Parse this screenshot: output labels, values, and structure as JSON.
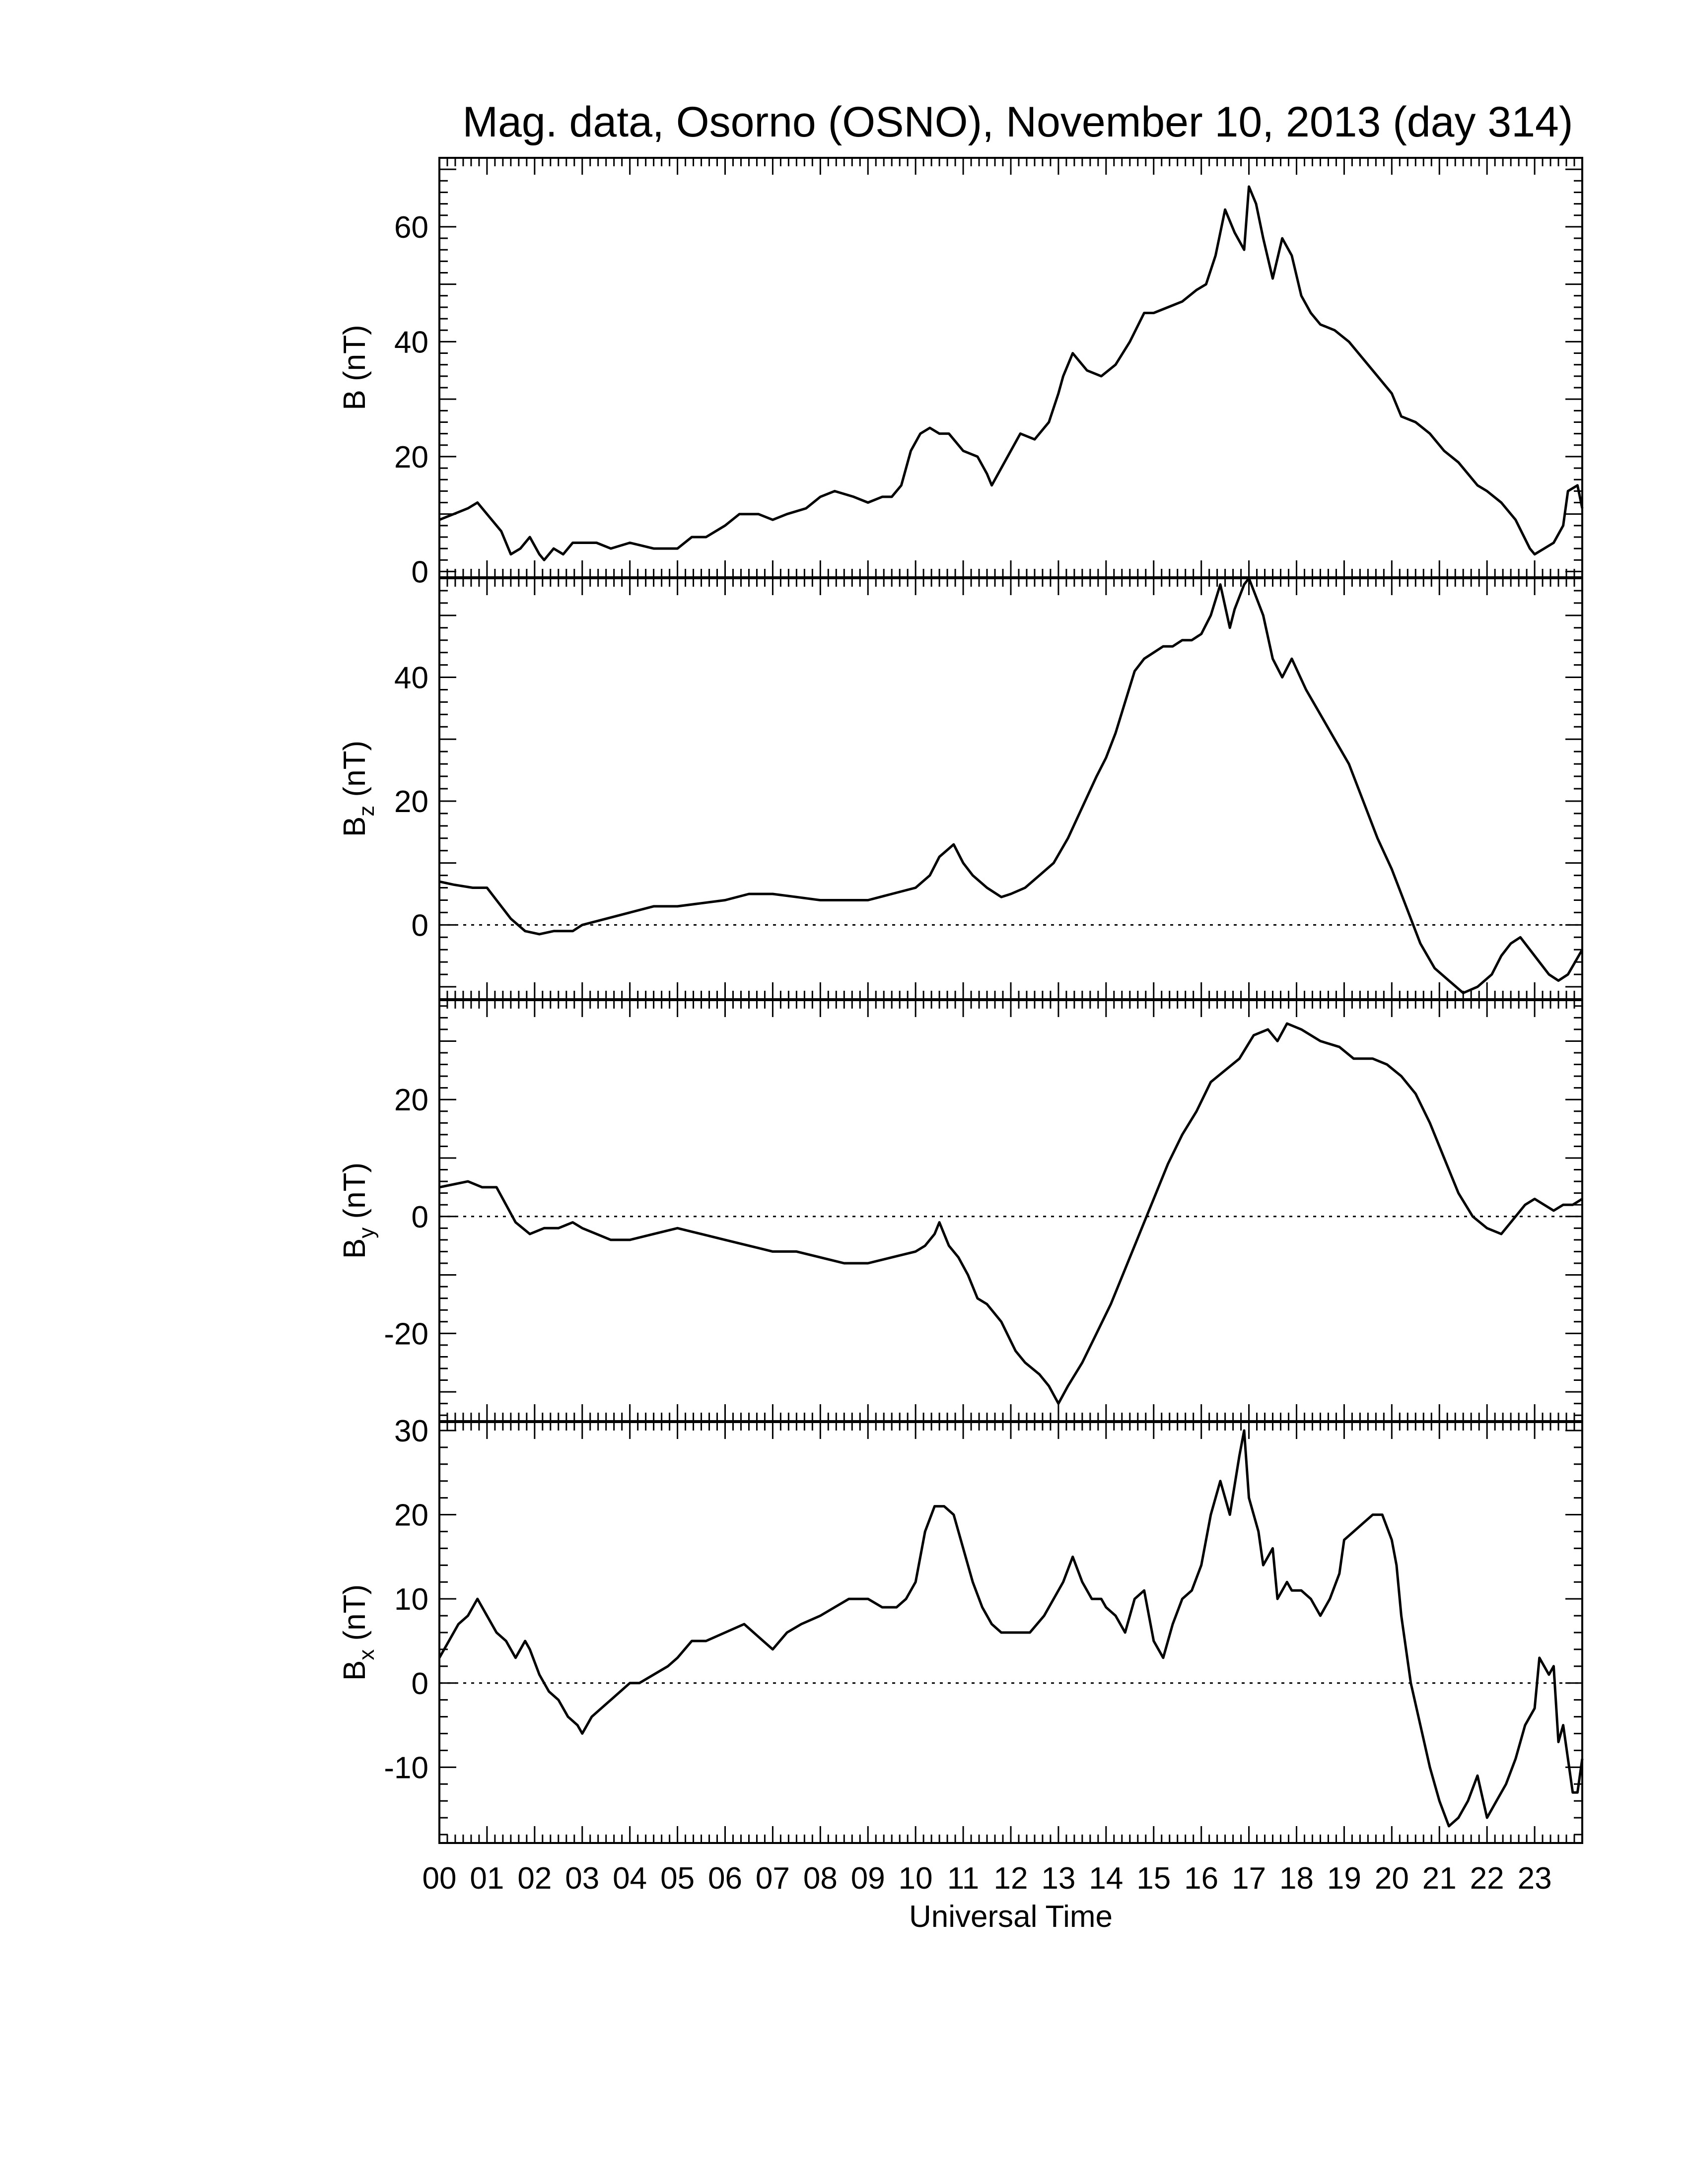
{
  "title": "Mag. data, Osorno (OSNO), November 10, 2013 (day 314)",
  "chart_data": [
    {
      "type": "line",
      "ylabel": "B (nT)",
      "ylabel_main": "B",
      "ylabel_sub": "",
      "ylabel_unit": " (nT)",
      "ylim": [
        -1,
        72
      ],
      "yticks": [
        0,
        20,
        40,
        60
      ],
      "zero_line": false,
      "x": [
        0.0,
        0.3,
        0.6,
        0.8,
        1.0,
        1.3,
        1.5,
        1.7,
        1.9,
        2.1,
        2.2,
        2.4,
        2.6,
        2.8,
        3.0,
        3.3,
        3.6,
        4.0,
        4.5,
        5.0,
        5.3,
        5.6,
        6.0,
        6.3,
        6.7,
        7.0,
        7.3,
        7.7,
        8.0,
        8.3,
        8.7,
        9.0,
        9.3,
        9.5,
        9.7,
        9.9,
        10.1,
        10.3,
        10.5,
        10.7,
        11.0,
        11.3,
        11.5,
        11.6,
        11.8,
        12.0,
        12.2,
        12.5,
        12.8,
        13.0,
        13.1,
        13.3,
        13.6,
        13.9,
        14.2,
        14.5,
        14.8,
        15.0,
        15.3,
        15.6,
        15.9,
        16.1,
        16.3,
        16.5,
        16.7,
        16.9,
        17.0,
        17.15,
        17.3,
        17.5,
        17.7,
        17.9,
        18.1,
        18.3,
        18.5,
        18.8,
        19.1,
        19.4,
        19.7,
        20.0,
        20.2,
        20.5,
        20.8,
        21.1,
        21.4,
        21.6,
        21.8,
        22.0,
        22.3,
        22.6,
        22.9,
        23.0,
        23.2,
        23.4,
        23.6,
        23.7,
        23.9,
        24.0
      ],
      "y": [
        9,
        10,
        11,
        12,
        10,
        7,
        3,
        4,
        6,
        3,
        2,
        4,
        3,
        5,
        5,
        5,
        4,
        5,
        4,
        4,
        6,
        6,
        8,
        10,
        10,
        9,
        10,
        11,
        13,
        14,
        13,
        12,
        13,
        13,
        15,
        21,
        24,
        25,
        24,
        24,
        21,
        20,
        17,
        15,
        18,
        21,
        24,
        23,
        26,
        31,
        34,
        38,
        35,
        34,
        36,
        40,
        45,
        45,
        46,
        47,
        49,
        50,
        55,
        63,
        59,
        56,
        67,
        64,
        58,
        51,
        58,
        55,
        48,
        45,
        43,
        42,
        40,
        37,
        34,
        31,
        27,
        26,
        24,
        21,
        19,
        17,
        15,
        14,
        12,
        9,
        4,
        3,
        4,
        5,
        8,
        14,
        15,
        11
      ]
    },
    {
      "type": "line",
      "ylabel": "Bz (nT)",
      "ylabel_main": "B",
      "ylabel_sub": "z",
      "ylabel_unit": " (nT)",
      "ylim": [
        -12,
        56
      ],
      "yticks": [
        0,
        20,
        40
      ],
      "zero_line": true,
      "x": [
        0.0,
        0.3,
        0.7,
        1.0,
        1.2,
        1.5,
        1.8,
        2.1,
        2.4,
        2.8,
        3.0,
        3.5,
        4.0,
        4.5,
        5.0,
        5.5,
        6.0,
        6.5,
        7.0,
        7.5,
        8.0,
        8.5,
        9.0,
        9.5,
        10.0,
        10.3,
        10.5,
        10.8,
        11.0,
        11.2,
        11.5,
        11.8,
        12.0,
        12.3,
        12.6,
        12.9,
        13.2,
        13.5,
        13.8,
        14.0,
        14.2,
        14.4,
        14.6,
        14.8,
        15.0,
        15.2,
        15.4,
        15.6,
        15.8,
        16.0,
        16.2,
        16.4,
        16.6,
        16.7,
        16.9,
        17.0,
        17.1,
        17.3,
        17.5,
        17.7,
        17.9,
        18.2,
        18.5,
        18.8,
        19.1,
        19.4,
        19.7,
        20.0,
        20.3,
        20.6,
        20.9,
        21.2,
        21.5,
        21.8,
        22.1,
        22.3,
        22.5,
        22.7,
        22.9,
        23.1,
        23.3,
        23.5,
        23.7,
        23.85,
        24.0
      ],
      "y": [
        7,
        6.5,
        6,
        6,
        4,
        1,
        -1,
        -1.5,
        -1,
        -1,
        0,
        1,
        2,
        3,
        3,
        3.5,
        4,
        5,
        5,
        4.5,
        4,
        4,
        4,
        5,
        6,
        8,
        11,
        13,
        10,
        8,
        6,
        4.5,
        5,
        6,
        8,
        10,
        14,
        19,
        24,
        27,
        31,
        36,
        41,
        43,
        44,
        45,
        45,
        46,
        46,
        47,
        50,
        55,
        48,
        51,
        55,
        56,
        54,
        50,
        43,
        40,
        43,
        38,
        34,
        30,
        26,
        20,
        14,
        9,
        3,
        -3,
        -7,
        -9,
        -11,
        -10,
        -8,
        -5,
        -3,
        -2,
        -4,
        -6,
        -8,
        -9,
        -8,
        -6,
        -4
      ]
    },
    {
      "type": "line",
      "ylabel": "By (nT)",
      "ylabel_main": "B",
      "ylabel_sub": "y",
      "ylabel_unit": " (nT)",
      "ylim": [
        -35,
        37
      ],
      "yticks": [
        -20,
        0,
        20
      ],
      "zero_line": true,
      "x": [
        0.0,
        0.3,
        0.6,
        0.9,
        1.2,
        1.4,
        1.6,
        1.9,
        2.2,
        2.5,
        2.8,
        3.0,
        3.3,
        3.6,
        4.0,
        4.5,
        5.0,
        5.5,
        6.0,
        6.5,
        7.0,
        7.5,
        8.0,
        8.5,
        9.0,
        9.5,
        10.0,
        10.2,
        10.4,
        10.5,
        10.7,
        10.9,
        11.1,
        11.3,
        11.5,
        11.8,
        12.1,
        12.3,
        12.6,
        12.8,
        13.0,
        13.2,
        13.5,
        13.8,
        14.1,
        14.4,
        14.7,
        15.0,
        15.3,
        15.6,
        15.9,
        16.2,
        16.5,
        16.8,
        17.1,
        17.4,
        17.6,
        17.8,
        18.1,
        18.5,
        18.9,
        19.2,
        19.6,
        19.9,
        20.2,
        20.5,
        20.8,
        21.1,
        21.4,
        21.7,
        22.0,
        22.3,
        22.5,
        22.8,
        23.0,
        23.2,
        23.4,
        23.6,
        23.8,
        24.0
      ],
      "y": [
        5,
        5.5,
        6,
        5,
        5,
        2,
        -1,
        -3,
        -2,
        -2,
        -1,
        -2,
        -3,
        -4,
        -4,
        -3,
        -2,
        -3,
        -4,
        -5,
        -6,
        -6,
        -7,
        -8,
        -8,
        -7,
        -6,
        -5,
        -3,
        -1,
        -5,
        -7,
        -10,
        -14,
        -15,
        -18,
        -23,
        -25,
        -27,
        -29,
        -32,
        -29,
        -25,
        -20,
        -15,
        -9,
        -3,
        3,
        9,
        14,
        18,
        23,
        25,
        27,
        31,
        32,
        30,
        33,
        32,
        30,
        29,
        27,
        27,
        26,
        24,
        21,
        16,
        10,
        4,
        0,
        -2,
        -3,
        -1,
        2,
        3,
        2,
        1,
        2,
        2,
        3
      ]
    },
    {
      "type": "line",
      "ylabel": "Bx (nT)",
      "ylabel_main": "B",
      "ylabel_sub": "x",
      "ylabel_unit": " (nT)",
      "ylim": [
        -19,
        31
      ],
      "yticks": [
        -10,
        0,
        10,
        20,
        30
      ],
      "zero_line": true,
      "x": [
        0.0,
        0.2,
        0.4,
        0.6,
        0.8,
        1.0,
        1.2,
        1.4,
        1.6,
        1.8,
        1.9,
        2.1,
        2.3,
        2.5,
        2.7,
        2.9,
        3.0,
        3.2,
        3.4,
        3.6,
        3.8,
        4.0,
        4.2,
        4.5,
        4.8,
        5.0,
        5.3,
        5.6,
        6.0,
        6.4,
        6.8,
        7.0,
        7.3,
        7.6,
        8.0,
        8.3,
        8.6,
        9.0,
        9.3,
        9.6,
        9.8,
        10.0,
        10.2,
        10.4,
        10.6,
        10.8,
        11.0,
        11.2,
        11.4,
        11.6,
        11.8,
        12.0,
        12.2,
        12.4,
        12.7,
        12.9,
        13.1,
        13.3,
        13.5,
        13.7,
        13.9,
        14.0,
        14.2,
        14.4,
        14.6,
        14.8,
        15.0,
        15.2,
        15.4,
        15.6,
        15.8,
        16.0,
        16.2,
        16.4,
        16.5,
        16.6,
        16.8,
        16.9,
        17.0,
        17.2,
        17.3,
        17.5,
        17.6,
        17.8,
        17.9,
        18.1,
        18.3,
        18.5,
        18.7,
        18.9,
        19.0,
        19.2,
        19.4,
        19.6,
        19.8,
        20.0,
        20.1,
        20.2,
        20.4,
        20.6,
        20.8,
        21.0,
        21.2,
        21.4,
        21.6,
        21.8,
        22.0,
        22.2,
        22.4,
        22.6,
        22.8,
        23.0,
        23.1,
        23.3,
        23.4,
        23.5,
        23.6,
        23.8,
        23.9,
        24.0
      ],
      "y": [
        3,
        5,
        7,
        8,
        10,
        8,
        6,
        5,
        3,
        5,
        4,
        1,
        -1,
        -2,
        -4,
        -5,
        -6,
        -4,
        -3,
        -2,
        -1,
        0,
        0,
        1,
        2,
        3,
        5,
        5,
        6,
        7,
        5,
        4,
        6,
        7,
        8,
        9,
        10,
        10,
        9,
        9,
        10,
        12,
        18,
        21,
        21,
        20,
        16,
        12,
        9,
        7,
        6,
        6,
        6,
        6,
        8,
        10,
        12,
        15,
        12,
        10,
        10,
        9,
        8,
        6,
        10,
        11,
        5,
        3,
        7,
        10,
        11,
        14,
        20,
        24,
        22,
        20,
        27,
        30,
        22,
        18,
        14,
        16,
        10,
        12,
        11,
        11,
        10,
        8,
        10,
        13,
        17,
        18,
        19,
        20,
        20,
        17,
        14,
        8,
        0,
        -5,
        -10,
        -14,
        -17,
        -16,
        -14,
        -11,
        -16,
        -14,
        -12,
        -9,
        -5,
        -3,
        3,
        1,
        2,
        -7,
        -5,
        -13,
        -13,
        -9
      ]
    }
  ],
  "xaxis": {
    "label": "Universal Time",
    "xlim": [
      0,
      24
    ],
    "tick_labels": [
      "00",
      "01",
      "02",
      "03",
      "04",
      "05",
      "06",
      "07",
      "08",
      "09",
      "10",
      "11",
      "12",
      "13",
      "14",
      "15",
      "16",
      "17",
      "18",
      "19",
      "20",
      "21",
      "22",
      "23"
    ]
  },
  "style": {
    "line_color": "#000000",
    "zero_line_color": "#000000",
    "frame_color": "#000000",
    "background": "#ffffff"
  }
}
